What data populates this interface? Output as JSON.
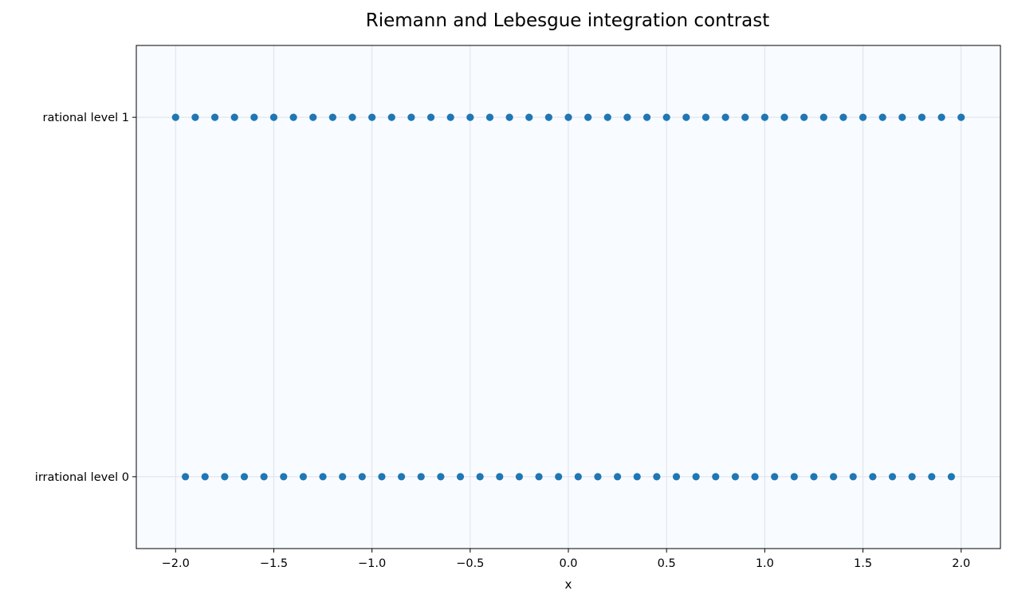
{
  "chart_data": {
    "type": "scatter",
    "title": "Riemann and Lebesgue integration contrast",
    "xlabel": "x",
    "ylabel": "",
    "xlim": [
      -2.2,
      2.2
    ],
    "ylim": [
      -0.2,
      1.2
    ],
    "x_ticks": [
      -2.0,
      -1.5,
      -1.0,
      -0.5,
      0.0,
      0.5,
      1.0,
      1.5,
      2.0
    ],
    "x_tick_labels": [
      "−2.0",
      "−1.5",
      "−1.0",
      "−0.5",
      "0.0",
      "0.5",
      "1.0",
      "1.5",
      "2.0"
    ],
    "y_ticks": [
      0,
      1
    ],
    "y_tick_labels": [
      "irrational level 0",
      "rational level 1"
    ],
    "grid": true,
    "colors": {
      "marker": "#1f77b4",
      "plot_background": "#f8fbff",
      "grid": "#dde3ea"
    },
    "series": [
      {
        "y": 1,
        "x": [
          -2.0,
          -1.9,
          -1.8,
          -1.7,
          -1.6,
          -1.5,
          -1.4,
          -1.3,
          -1.2,
          -1.1,
          -1.0,
          -0.9,
          -0.8,
          -0.7,
          -0.6,
          -0.5,
          -0.4,
          -0.3,
          -0.2,
          -0.1,
          0.0,
          0.1,
          0.2,
          0.3,
          0.4,
          0.5,
          0.6,
          0.7,
          0.8,
          0.9,
          1.0,
          1.1,
          1.2,
          1.3,
          1.4,
          1.5,
          1.6,
          1.7,
          1.8,
          1.9,
          2.0
        ]
      },
      {
        "y": 0,
        "x": [
          -1.95,
          -1.85,
          -1.75,
          -1.65,
          -1.55,
          -1.45,
          -1.35,
          -1.25,
          -1.15,
          -1.05,
          -0.95,
          -0.85,
          -0.75,
          -0.65,
          -0.55,
          -0.45,
          -0.35,
          -0.25,
          -0.15,
          -0.05,
          0.05,
          0.15,
          0.25,
          0.35,
          0.45,
          0.55,
          0.65,
          0.75,
          0.85,
          0.95,
          1.05,
          1.15,
          1.25,
          1.35,
          1.45,
          1.55,
          1.65,
          1.75,
          1.85,
          1.95
        ]
      }
    ]
  }
}
